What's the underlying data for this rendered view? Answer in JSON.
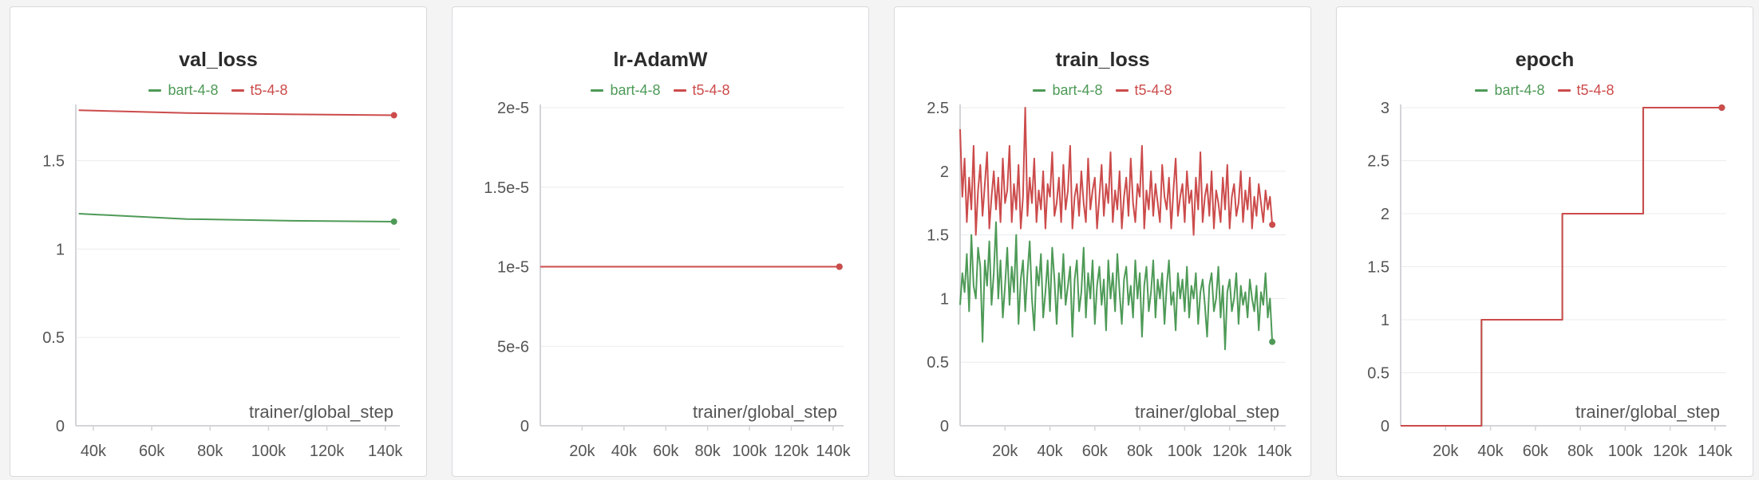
{
  "legend": [
    {
      "name": "bart-4-8",
      "color": "#4e9a57"
    },
    {
      "name": "t5-4-8",
      "color": "#cc4b4b"
    }
  ],
  "chart_data": [
    {
      "type": "line",
      "title": "val_loss",
      "xlabel": "trainer/global_step",
      "xlim": [
        34000,
        145000
      ],
      "ylim": [
        0,
        1.8
      ],
      "xticks": [
        40000,
        60000,
        80000,
        100000,
        120000,
        140000
      ],
      "xtick_labels": [
        "40k",
        "60k",
        "80k",
        "100k",
        "120k",
        "140k"
      ],
      "yticks": [
        0,
        0.5,
        1,
        1.5
      ],
      "ytick_labels": [
        "0",
        "0.5",
        "1",
        "1.5"
      ],
      "series": [
        {
          "name": "bart-4-8",
          "x": [
            35000,
            72000,
            108000,
            143000
          ],
          "y": [
            1.2,
            1.17,
            1.16,
            1.155
          ]
        },
        {
          "name": "t5-4-8",
          "x": [
            35000,
            72000,
            108000,
            143000
          ],
          "y": [
            1.785,
            1.77,
            1.762,
            1.757
          ]
        }
      ]
    },
    {
      "type": "line",
      "title": "lr-AdamW",
      "xlabel": "trainer/global_step",
      "xlim": [
        0,
        145000
      ],
      "ylim": [
        0,
        2e-05
      ],
      "xticks": [
        20000,
        40000,
        60000,
        80000,
        100000,
        120000,
        140000
      ],
      "xtick_labels": [
        "20k",
        "40k",
        "60k",
        "80k",
        "100k",
        "120k",
        "140k"
      ],
      "yticks": [
        0,
        5e-06,
        1e-05,
        1.5e-05,
        2e-05
      ],
      "ytick_labels": [
        "0",
        "5e-6",
        "1e-5",
        "1.5e-5",
        "2e-5"
      ],
      "series": [
        {
          "name": "bart-4-8",
          "x": [
            0,
            143000
          ],
          "y": [
            1e-05,
            1e-05
          ]
        },
        {
          "name": "t5-4-8",
          "x": [
            0,
            143000
          ],
          "y": [
            1e-05,
            1e-05
          ]
        }
      ]
    },
    {
      "type": "line",
      "title": "train_loss",
      "xlabel": "trainer/global_step",
      "xlim": [
        0,
        145000
      ],
      "ylim": [
        0,
        2.5
      ],
      "xticks": [
        20000,
        40000,
        60000,
        80000,
        100000,
        120000,
        140000
      ],
      "xtick_labels": [
        "20k",
        "40k",
        "60k",
        "80k",
        "100k",
        "120k",
        "140k"
      ],
      "yticks": [
        0,
        0.5,
        1,
        1.5,
        2,
        2.5
      ],
      "ytick_labels": [
        "0",
        "0.5",
        "1",
        "1.5",
        "2",
        "2.5"
      ],
      "series": [
        {
          "name": "bart-4-8",
          "step": 1000,
          "x0": 0,
          "y": [
            0.95,
            1.2,
            1.05,
            1.35,
            0.9,
            1.5,
            1.1,
            1.0,
            1.4,
            1.25,
            0.66,
            1.3,
            1.1,
            1.45,
            0.95,
            1.2,
            1.6,
            1.0,
            1.3,
            0.85,
            1.1,
            1.4,
            0.95,
            1.25,
            1.05,
            1.5,
            0.8,
            1.15,
            1.3,
            0.9,
            1.2,
            1.45,
            1.0,
            0.75,
            1.25,
            1.1,
            1.35,
            0.85,
            1.05,
            1.3,
            0.9,
            1.4,
            1.15,
            0.8,
            1.2,
            1.0,
            1.35,
            0.95,
            1.1,
            1.25,
            0.7,
            1.15,
            1.3,
            0.9,
            1.05,
            1.4,
            0.85,
            1.2,
            1.0,
            1.3,
            0.8,
            1.1,
            1.25,
            0.95,
            1.15,
            0.75,
            1.3,
            1.0,
            1.2,
            0.9,
            1.35,
            1.05,
            0.8,
            1.15,
            1.25,
            0.95,
            1.1,
            0.85,
            1.3,
            1.0,
            1.2,
            0.7,
            1.1,
            1.25,
            0.9,
            1.05,
            1.3,
            0.85,
            1.15,
            1.0,
            1.2,
            0.8,
            1.1,
            1.3,
            0.95,
            1.05,
            0.75,
            1.2,
            1.0,
            1.15,
            0.9,
            1.25,
            0.85,
            1.1,
            1.0,
            1.2,
            0.8,
            1.05,
            1.15,
            0.95,
            0.7,
            1.1,
            1.2,
            0.9,
            1.0,
            1.25,
            0.85,
            1.1,
            0.6,
            1.05,
            1.15,
            0.9,
            1.0,
            1.2,
            0.8,
            1.1,
            0.95,
            1.05,
            0.85,
            1.15,
            1.0,
            0.9,
            1.1,
            0.75,
            1.05,
            0.95,
            1.2,
            0.85,
            1.0,
            0.66
          ]
        },
        {
          "name": "t5-4-8",
          "step": 1000,
          "x0": 0,
          "y": [
            2.33,
            1.8,
            2.1,
            1.6,
            1.95,
            1.7,
            2.2,
            1.5,
            1.85,
            2.05,
            1.65,
            1.9,
            2.15,
            1.55,
            1.8,
            2.0,
            1.7,
            1.95,
            1.6,
            2.1,
            1.75,
            1.85,
            2.2,
            1.6,
            1.9,
            1.7,
            2.05,
            1.55,
            1.8,
            2.5,
            1.65,
            1.95,
            1.75,
            2.1,
            1.6,
            1.85,
            1.7,
            2.0,
            1.55,
            1.9,
            1.8,
            2.15,
            1.65,
            1.75,
            1.95,
            1.6,
            2.05,
            1.7,
            1.85,
            2.2,
            1.55,
            1.8,
            1.9,
            1.65,
            2.0,
            1.75,
            1.6,
            2.1,
            1.7,
            1.85,
            1.95,
            1.55,
            1.8,
            2.05,
            1.65,
            1.9,
            1.75,
            2.15,
            1.6,
            1.85,
            1.7,
            2.0,
            1.55,
            1.8,
            1.95,
            1.65,
            2.1,
            1.75,
            1.6,
            1.9,
            1.8,
            2.2,
            1.55,
            1.85,
            1.7,
            2.0,
            1.65,
            1.9,
            1.75,
            1.6,
            2.05,
            1.8,
            1.7,
            1.95,
            1.55,
            1.85,
            2.1,
            1.65,
            1.8,
            1.9,
            1.6,
            2.0,
            1.75,
            1.85,
            1.5,
            1.95,
            1.7,
            2.15,
            1.6,
            1.8,
            1.9,
            1.65,
            2.0,
            1.55,
            1.85,
            1.75,
            1.6,
            1.95,
            1.7,
            2.05,
            1.55,
            1.8,
            1.9,
            1.65,
            1.75,
            2.0,
            1.6,
            1.85,
            1.7,
            1.95,
            1.55,
            1.8,
            1.65,
            1.9,
            1.75,
            1.6,
            1.85,
            1.7,
            1.8,
            1.58
          ]
        }
      ]
    },
    {
      "type": "line",
      "title": "epoch",
      "xlabel": "trainer/global_step",
      "xlim": [
        0,
        145000
      ],
      "ylim": [
        0,
        3
      ],
      "xticks": [
        20000,
        40000,
        60000,
        80000,
        100000,
        120000,
        140000
      ],
      "xtick_labels": [
        "20k",
        "40k",
        "60k",
        "80k",
        "100k",
        "120k",
        "140k"
      ],
      "yticks": [
        0,
        0.5,
        1,
        1.5,
        2,
        2.5,
        3
      ],
      "ytick_labels": [
        "0",
        "0.5",
        "1",
        "1.5",
        "2",
        "2.5",
        "3"
      ],
      "series": [
        {
          "name": "bart-4-8",
          "x": [
            0,
            36000,
            36000,
            72000,
            72000,
            108000,
            108000,
            143000
          ],
          "y": [
            0,
            0,
            1,
            1,
            2,
            2,
            3,
            3
          ]
        },
        {
          "name": "t5-4-8",
          "x": [
            0,
            36000,
            36000,
            72000,
            72000,
            108000,
            108000,
            143000
          ],
          "y": [
            0,
            0,
            1,
            1,
            2,
            2,
            3,
            3
          ]
        }
      ]
    }
  ]
}
